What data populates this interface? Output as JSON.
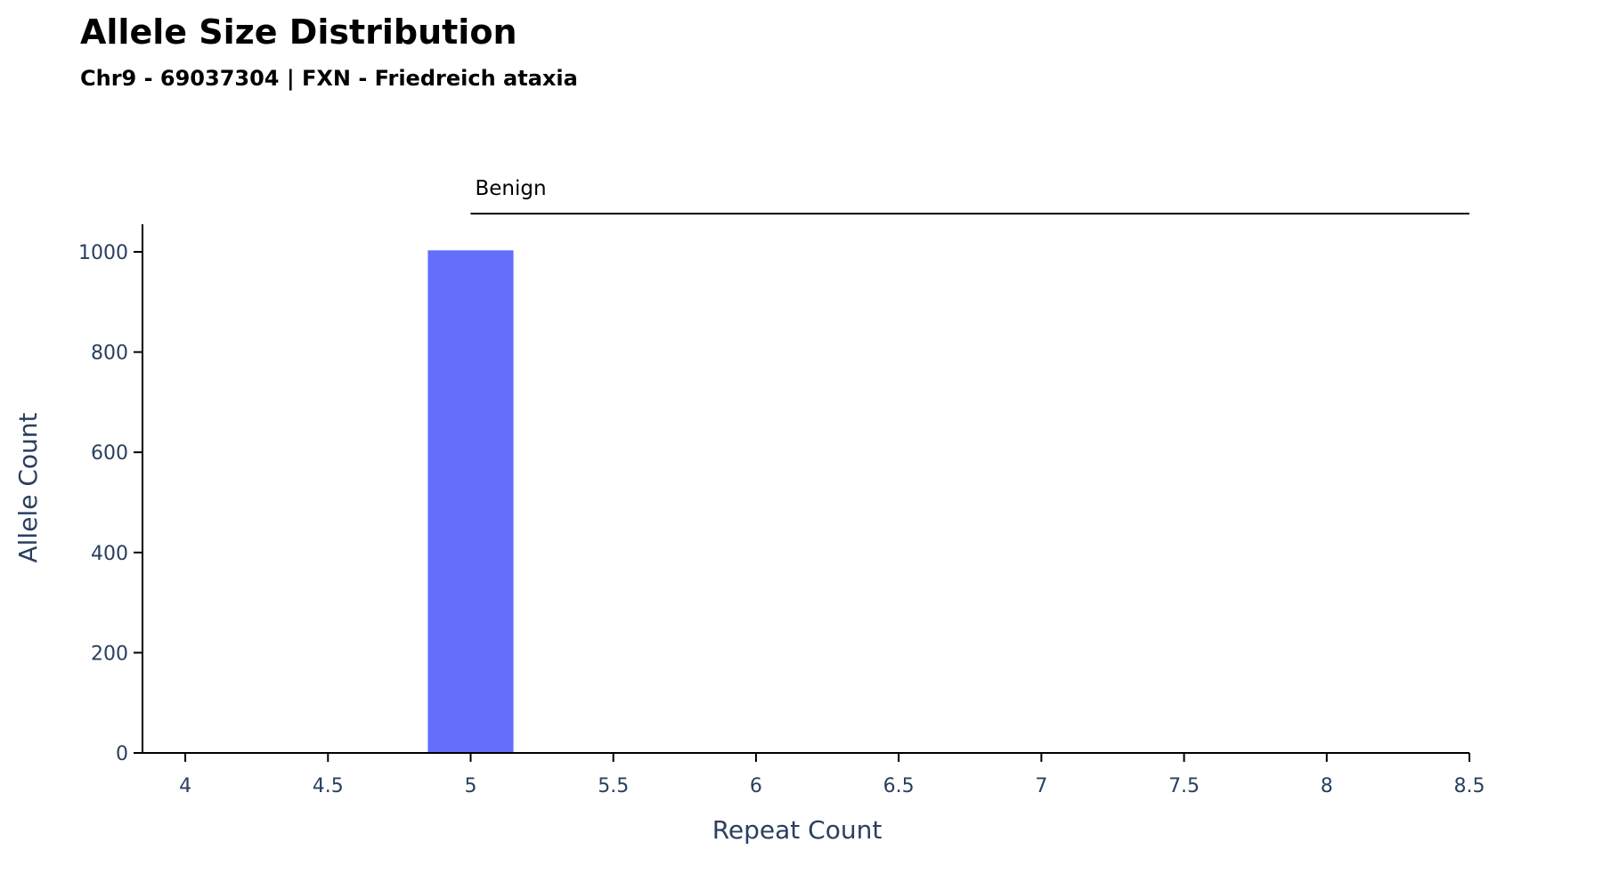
{
  "chart_data": {
    "type": "bar",
    "title": "Allele Size Distribution",
    "subtitle": "Chr9 - 69037304 | FXN - Friedreich ataxia",
    "xlabel": "Repeat Count",
    "ylabel": "Allele Count",
    "xlim": [
      3.85,
      8.5
    ],
    "ylim": [
      0,
      1055
    ],
    "x_ticks": [
      4,
      4.5,
      5,
      5.5,
      6,
      6.5,
      7,
      7.5,
      8,
      8.5
    ],
    "x_tick_labels": [
      "4",
      "4.5",
      "5",
      "5.5",
      "6",
      "6.5",
      "7",
      "7.5",
      "8",
      "8.5"
    ],
    "y_ticks": [
      0,
      200,
      400,
      600,
      800,
      1000
    ],
    "y_tick_labels": [
      "0",
      "200",
      "400",
      "600",
      "800",
      "1000"
    ],
    "bar_width": 0.3,
    "bar_color": "#636efa",
    "grid": false,
    "x": [
      5,
      6
    ],
    "values": [
      1003,
      1
    ],
    "regions": [
      {
        "label": "Benign",
        "x_start": 5,
        "x_end": 8.5
      }
    ]
  }
}
